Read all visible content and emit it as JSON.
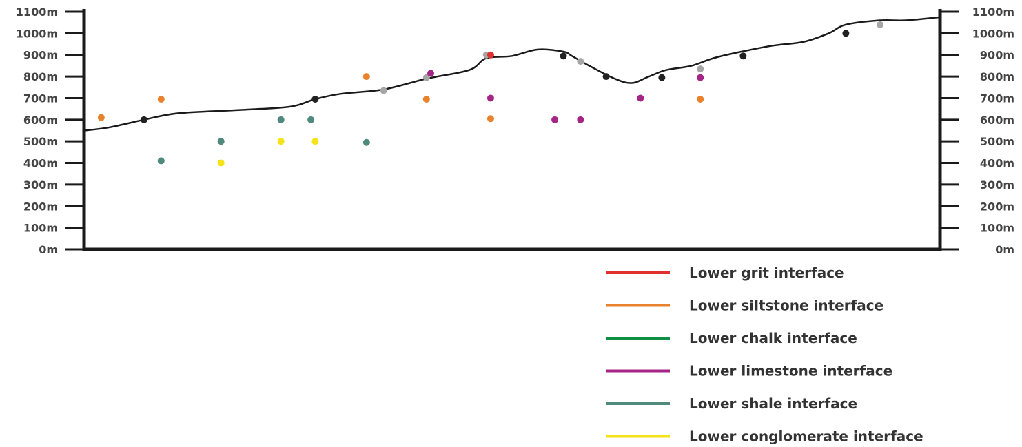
{
  "chart_data": {
    "type": "scatter",
    "title": "",
    "xlabel": "",
    "ylabel": "",
    "ylim": [
      0,
      1100
    ],
    "y_ticks": [
      "0m",
      "100m",
      "200m",
      "300m",
      "400m",
      "500m",
      "600m",
      "700m",
      "800m",
      "900m",
      "1000m",
      "1100m"
    ],
    "y_tick_values": [
      0,
      100,
      200,
      300,
      400,
      500,
      600,
      700,
      800,
      900,
      1000,
      1100
    ],
    "grid": false,
    "legend_position": "bottom-right",
    "surface_profile": {
      "color": "#1a1a1a",
      "points": [
        [
          0,
          550
        ],
        [
          3,
          565
        ],
        [
          7,
          600
        ],
        [
          11,
          630
        ],
        [
          18,
          645
        ],
        [
          24,
          660
        ],
        [
          27,
          695
        ],
        [
          30,
          720
        ],
        [
          35,
          740
        ],
        [
          40,
          790
        ],
        [
          45,
          830
        ],
        [
          47,
          885
        ],
        [
          50,
          895
        ],
        [
          53,
          925
        ],
        [
          56,
          915
        ],
        [
          57,
          895
        ],
        [
          59,
          850
        ],
        [
          62,
          790
        ],
        [
          64,
          770
        ],
        [
          66,
          800
        ],
        [
          68,
          830
        ],
        [
          71,
          850
        ],
        [
          74,
          890
        ],
        [
          80,
          940
        ],
        [
          84,
          960
        ],
        [
          87,
          1000
        ],
        [
          89,
          1040
        ],
        [
          93,
          1060
        ],
        [
          96,
          1060
        ],
        [
          100,
          1075
        ]
      ]
    },
    "surface_markers": [
      {
        "x": 7,
        "y": 600,
        "color": "#222222"
      },
      {
        "x": 27,
        "y": 695,
        "color": "#222222"
      },
      {
        "x": 35,
        "y": 735,
        "color": "#a6a6a6"
      },
      {
        "x": 40,
        "y": 795,
        "color": "#a6a6a6"
      },
      {
        "x": 47,
        "y": 900,
        "color": "#a6a6a6"
      },
      {
        "x": 56,
        "y": 895,
        "color": "#222222"
      },
      {
        "x": 58,
        "y": 870,
        "color": "#a6a6a6"
      },
      {
        "x": 61,
        "y": 800,
        "color": "#222222"
      },
      {
        "x": 67.5,
        "y": 795,
        "color": "#222222"
      },
      {
        "x": 72,
        "y": 835,
        "color": "#a6a6a6"
      },
      {
        "x": 77,
        "y": 895,
        "color": "#222222"
      },
      {
        "x": 89,
        "y": 1000,
        "color": "#222222"
      },
      {
        "x": 93,
        "y": 1040,
        "color": "#a6a6a6"
      }
    ],
    "series": [
      {
        "name": "Lower grit interface",
        "color": "#e0302f",
        "points": [
          [
            47.5,
            900
          ]
        ]
      },
      {
        "name": "Lower siltstone interface",
        "color": "#e8822d",
        "points": [
          [
            2,
            610
          ],
          [
            9,
            695
          ],
          [
            33,
            800
          ],
          [
            40,
            695
          ],
          [
            47.5,
            605
          ],
          [
            72,
            695
          ]
        ]
      },
      {
        "name": "Lower chalk interface",
        "color": "#0f8f45",
        "points": []
      },
      {
        "name": "Lower limestone interface",
        "color": "#a52587",
        "points": [
          [
            40.5,
            815
          ],
          [
            47.5,
            700
          ],
          [
            55,
            600
          ],
          [
            58,
            600
          ],
          [
            65,
            700
          ],
          [
            72,
            795
          ]
        ]
      },
      {
        "name": "Lower shale interface",
        "color": "#4f8a7c",
        "points": [
          [
            9,
            410
          ],
          [
            16,
            500
          ],
          [
            23,
            600
          ],
          [
            26.5,
            600
          ],
          [
            33,
            495
          ]
        ]
      },
      {
        "name": "Lower conglomerate interface",
        "color": "#f5e31a",
        "points": [
          [
            16,
            400
          ],
          [
            23,
            500
          ],
          [
            27,
            500
          ]
        ]
      }
    ]
  }
}
